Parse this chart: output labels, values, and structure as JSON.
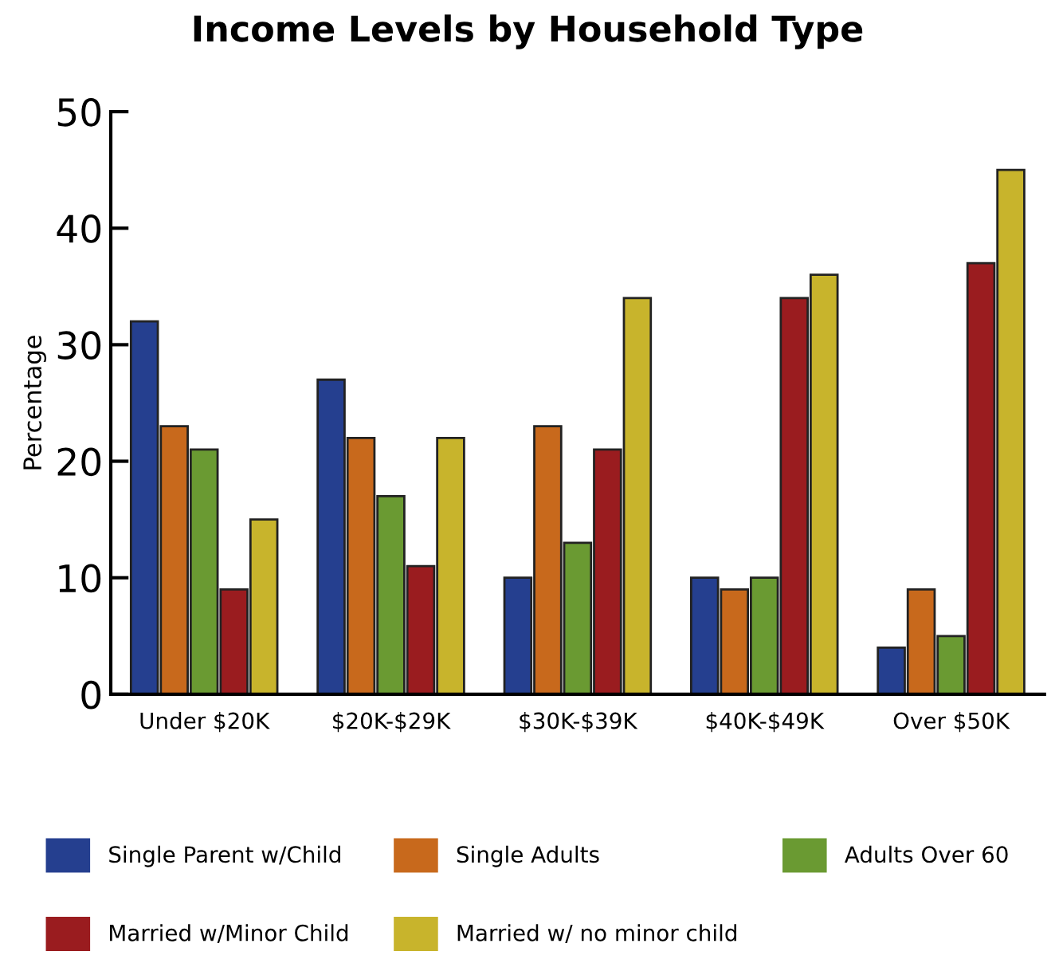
{
  "chart_data": {
    "type": "bar",
    "title": "Income Levels by Household Type",
    "ylabel": "Percentage",
    "categories": [
      "Under $20K",
      "$20K-$29K",
      "$30K-$39K",
      "$40K-$49K",
      "Over $50K"
    ],
    "series": [
      {
        "name": "Single Parent w/Child",
        "color": "#253f8f",
        "values": [
          32,
          27,
          10,
          10,
          4
        ]
      },
      {
        "name": "Single Adults",
        "color": "#c8691c",
        "values": [
          23,
          22,
          23,
          9,
          9
        ]
      },
      {
        "name": "Adults Over 60",
        "color": "#6a9a32",
        "values": [
          21,
          17,
          13,
          10,
          5
        ]
      },
      {
        "name": "Married w/Minor Child",
        "color": "#9a1c1f",
        "values": [
          9,
          11,
          21,
          34,
          37
        ]
      },
      {
        "name": "Married w/ no minor child",
        "color": "#c8b42c",
        "values": [
          15,
          22,
          34,
          36,
          45
        ]
      }
    ],
    "ylim": [
      0,
      50
    ],
    "yticks": [
      0,
      10,
      20,
      30,
      40,
      50
    ],
    "grid": false,
    "legend": "bottom"
  }
}
